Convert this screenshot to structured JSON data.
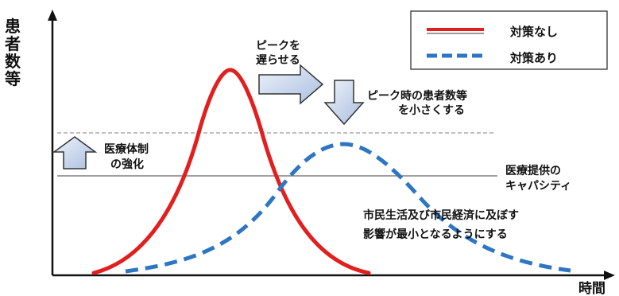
{
  "axes": {
    "y_label": "患者数等",
    "x_label": "時間"
  },
  "legend": {
    "items": [
      {
        "label": "対策なし",
        "color": "#e21f1f",
        "style": "solid"
      },
      {
        "label": "対策あり",
        "color": "#2e76c4",
        "style": "dashed"
      }
    ]
  },
  "annotations": {
    "delay_peak": [
      "ピークを",
      "遅らせる"
    ],
    "reduce_peak": [
      "ピーク時の患者数等",
      "を小さくする"
    ],
    "strengthen": [
      "医療体制",
      "の強化"
    ],
    "capacity": [
      "医療提供の",
      "キャパシティ"
    ],
    "minimize": [
      "市民生活及び市民経済に及ぼす",
      "影響が最小となるようにする"
    ]
  },
  "colors": {
    "no_measures": "#e21f1f",
    "with_measures": "#2e76c4",
    "arrow_fill": "#c9d6ea",
    "capacity_line": "#666666",
    "dashed_line": "#9a9a9a"
  }
}
